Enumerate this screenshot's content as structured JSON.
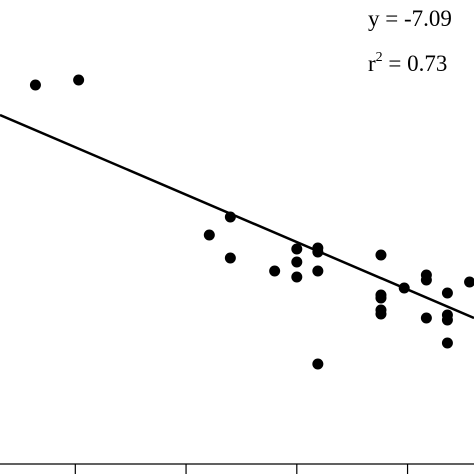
{
  "chart_data": {
    "type": "scatter",
    "annotations": {
      "equation": "y = -7.09",
      "r2_base": "r",
      "r2_exponent": "2",
      "r2_value": " = 0.73"
    },
    "x": [
      0.64,
      1.03,
      2.4,
      2.21,
      2.4,
      3.0,
      3.19,
      3.19,
      3.0,
      2.8,
      3.0,
      3.19,
      3.19,
      3.76,
      3.97,
      4.17,
      4.17,
      3.76,
      3.76,
      3.76,
      3.76,
      4.36,
      4.56,
      4.17,
      4.36,
      4.36,
      4.36
    ],
    "values": [
      3.79,
      3.84,
      2.47,
      2.29,
      2.06,
      2.15,
      2.16,
      2.12,
      2.02,
      1.93,
      1.87,
      1.93,
      1.0,
      2.09,
      1.76,
      1.89,
      1.84,
      1.69,
      1.66,
      1.54,
      1.5,
      1.71,
      1.82,
      1.46,
      1.49,
      1.44,
      1.21
    ],
    "color": "#000000",
    "trendline": {
      "x": [
        0.32,
        4.6
      ],
      "y": [
        3.49,
        1.46
      ]
    },
    "xlim": [
      0.32,
      4.6
    ],
    "ylim": [
      0,
      4.64
    ],
    "xticks": [
      1,
      2,
      3,
      4
    ]
  }
}
